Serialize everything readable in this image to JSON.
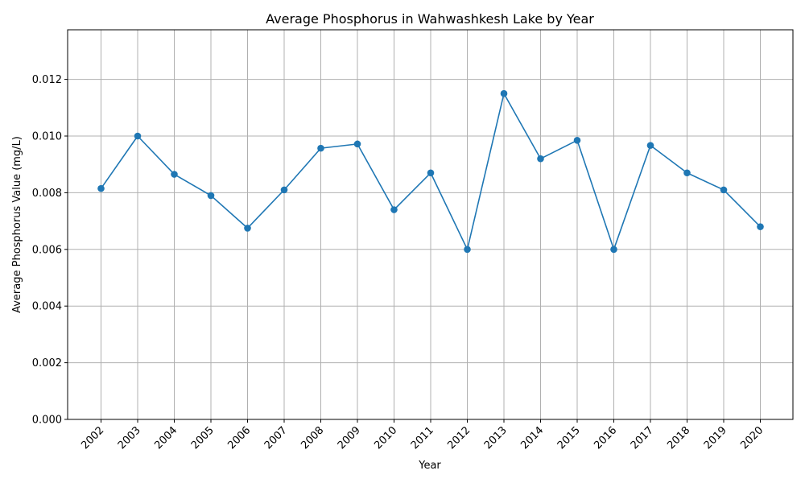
{
  "chart_data": {
    "type": "line",
    "title": "Average Phosphorus in Wahwashkesh Lake by Year",
    "xlabel": "Year",
    "ylabel": "Average Phosphorus Value (mg/L)",
    "categories": [
      "2002",
      "2003",
      "2004",
      "2005",
      "2006",
      "2007",
      "2008",
      "2009",
      "2010",
      "2011",
      "2012",
      "2013",
      "2014",
      "2015",
      "2016",
      "2017",
      "2018",
      "2019",
      "2020"
    ],
    "series": [
      {
        "values": [
          0.00815,
          0.01,
          0.00865,
          0.0079,
          0.00675,
          0.0081,
          0.00957,
          0.00972,
          0.0074,
          0.0087,
          0.006,
          0.0115,
          0.0092,
          0.00985,
          0.006,
          0.00967,
          0.0087,
          0.0081,
          0.0068
        ],
        "color": "#1f77b4"
      }
    ],
    "ylim": [
      0,
      0.01375
    ],
    "yticks": [
      "0.000",
      "0.002",
      "0.004",
      "0.006",
      "0.008",
      "0.010",
      "0.012"
    ],
    "grid": true,
    "marker": "circle"
  }
}
